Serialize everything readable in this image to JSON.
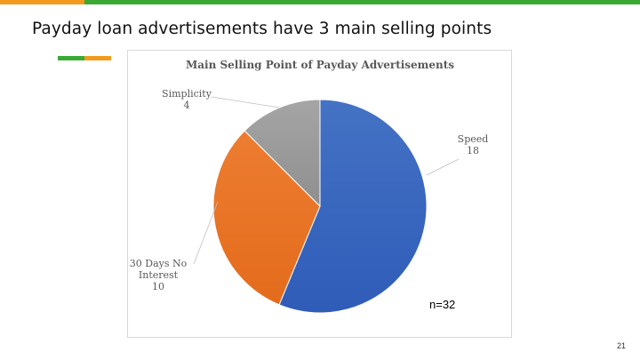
{
  "slide": {
    "title": "Payday loan advertisements have 3 main selling points",
    "note": "n=32",
    "page_number": "21"
  },
  "colors": {
    "top_bar_orange": "#f39a1e",
    "top_bar_green": "#3aaa35"
  },
  "chart_data": {
    "type": "pie",
    "title": "Main Selling Point of Payday Advertisements",
    "slices": [
      {
        "label": "Speed",
        "value": 18,
        "label_lines": [
          "Speed",
          "18"
        ],
        "color": "#4472c4",
        "gradient_dark": "#2f5cb8"
      },
      {
        "label": "30 Days No Interest",
        "value": 10,
        "label_lines": [
          "30 Days No",
          "Interest",
          "10"
        ],
        "color": "#ed7d31",
        "gradient_dark": "#e46b1c"
      },
      {
        "label": "Simplicity",
        "value": 4,
        "label_lines": [
          "Simplicity",
          "4"
        ],
        "color": "#a5a5a5",
        "gradient_dark": "#8f8f8f"
      }
    ],
    "legend": "none",
    "data_labels": "outside with leader lines"
  }
}
